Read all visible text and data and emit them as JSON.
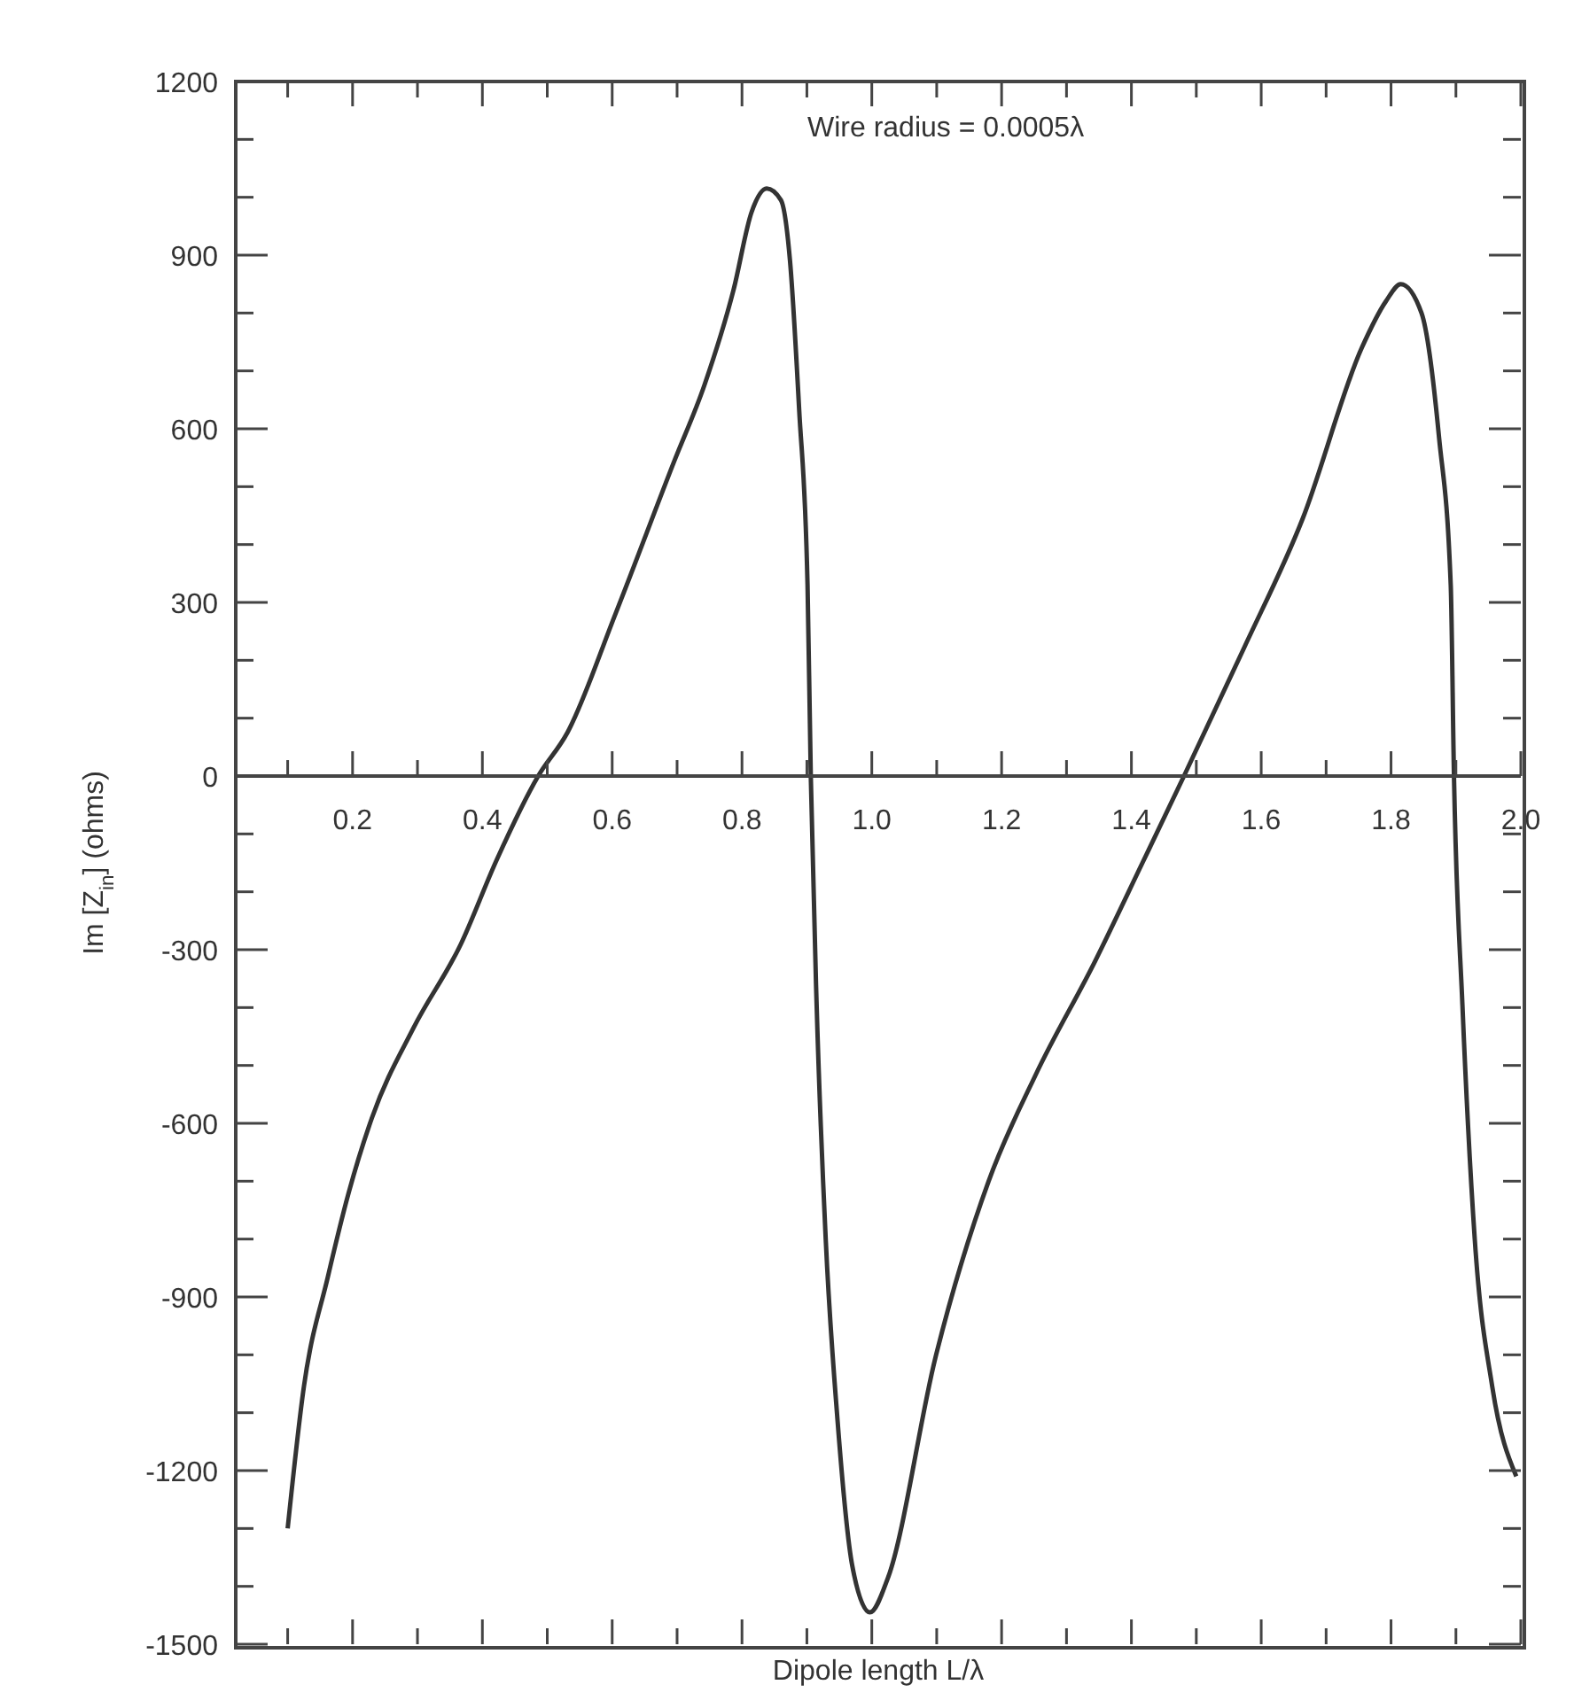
{
  "chart_data": {
    "type": "line",
    "xlabel": "Dipole length L/λ",
    "ylabel": "Im [Z$_{in}$] (ohms)",
    "annotations": [
      "Wire radius = 0.0005λ"
    ],
    "x": [
      0.1,
      0.125,
      0.162,
      0.194,
      0.23,
      0.294,
      0.367,
      0.422,
      0.486,
      0.531,
      0.605,
      0.696,
      0.742,
      0.787,
      0.815,
      0.838,
      0.86,
      0.874,
      0.888,
      0.901,
      0.906,
      0.915,
      0.929,
      0.947,
      0.97,
      0.997,
      1.025,
      1.098,
      1.18,
      1.253,
      1.344,
      1.417,
      1.481,
      1.573,
      1.664,
      1.755,
      1.792,
      1.815,
      1.847,
      1.874,
      1.892,
      1.897,
      1.91,
      1.929,
      1.956,
      1.993
    ],
    "series": [
      {
        "color": "#333333",
        "values": [
          -1300,
          -1055,
          -865,
          -720,
          -590,
          -435,
          -290,
          -145,
          0,
          75,
          280,
          545,
          675,
          840,
          975,
          1015,
          995,
          890,
          635,
          330,
          0,
          -395,
          -800,
          -1110,
          -1365,
          -1445,
          -1385,
          -1005,
          -700,
          -515,
          -320,
          -150,
          0,
          220,
          445,
          740,
          820,
          850,
          800,
          585,
          330,
          0,
          -395,
          -800,
          -1055,
          -1210
        ]
      }
    ],
    "xlim": [
      0.02,
      2.0
    ],
    "xticks": [
      {
        "value": 0.1,
        "label": null
      },
      0.2,
      {
        "value": 0.3,
        "label": null
      },
      0.4,
      {
        "value": 0.5,
        "label": null
      },
      0.6,
      {
        "value": 0.7,
        "label": null
      },
      0.8,
      {
        "value": 0.9,
        "label": null
      },
      {
        "value": 1,
        "label": "1.0"
      },
      {
        "value": 1.1,
        "label": null
      },
      1.2,
      {
        "value": 1.3,
        "label": null
      },
      1.4,
      {
        "value": 1.5,
        "label": null
      },
      1.6,
      {
        "value": 1.7,
        "label": null
      },
      1.8,
      {
        "value": 1.9,
        "label": null
      },
      {
        "value": 2,
        "label": "2.0"
      }
    ],
    "ylim": [
      -1500,
      1200
    ],
    "yticks": [
      -1500,
      {
        "value": -1400,
        "label": null
      },
      {
        "value": -1300,
        "label": null
      },
      -1200,
      {
        "value": -1100,
        "label": null
      },
      {
        "value": -1000,
        "label": null
      },
      -900,
      {
        "value": -800,
        "label": null
      },
      {
        "value": -700,
        "label": null
      },
      -600,
      {
        "value": -500,
        "label": null
      },
      {
        "value": -400,
        "label": null
      },
      -300,
      {
        "value": -200,
        "label": null
      },
      {
        "value": -100,
        "label": null
      },
      0,
      {
        "value": 100,
        "label": null
      },
      {
        "value": 200,
        "label": null
      },
      300,
      {
        "value": 400,
        "label": null
      },
      {
        "value": 500,
        "label": null
      },
      600,
      {
        "value": 700,
        "label": null
      },
      {
        "value": 800,
        "label": null
      },
      900,
      {
        "value": 1000,
        "label": null
      },
      {
        "value": 1100,
        "label": null
      },
      1200
    ],
    "marker": "none"
  }
}
